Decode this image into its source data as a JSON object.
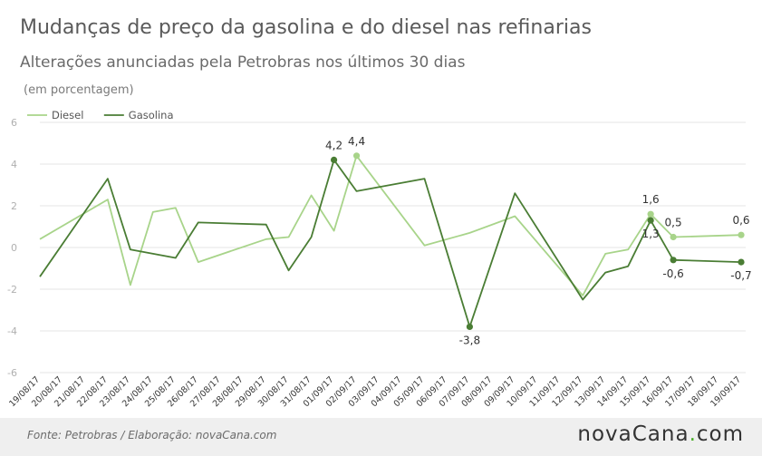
{
  "header": {
    "title": "Mudanças de preço da gasolina e do diesel nas refinarias",
    "subtitle": "Alterações anunciadas pela Petrobras nos últimos 30 dias",
    "unit": "(em porcentagem)"
  },
  "footer": {
    "source": "Fonte:  Petrobras  / Elaboração:  novaCana.com",
    "brand_name": "novaCana",
    "brand_dot": ".",
    "brand_tld": "com"
  },
  "colors": {
    "diesel": "#a8d48a",
    "gasolina": "#4a7d34",
    "grid": "#e4e4e4",
    "tick": "#b0b0b0"
  },
  "chart_data": {
    "type": "line",
    "ylim": [
      -6,
      6
    ],
    "yticks": [
      -6,
      -4,
      -2,
      0,
      2,
      4,
      6
    ],
    "legend_position": "top-left",
    "categories": [
      "19/08/17",
      "20/08/17",
      "21/08/17",
      "22/08/17",
      "23/08/17",
      "24/08/17",
      "25/08/17",
      "26/08/17",
      "27/08/17",
      "28/08/17",
      "29/08/17",
      "30/08/17",
      "31/08/17",
      "01/09/17",
      "02/09/17",
      "03/09/17",
      "04/09/17",
      "05/09/17",
      "06/09/17",
      "07/09/17",
      "08/09/17",
      "09/09/17",
      "10/09/17",
      "11/09/17",
      "12/09/17",
      "13/09/17",
      "14/09/17",
      "15/09/17",
      "16/09/17",
      "17/09/17",
      "18/09/17",
      "19/09/17"
    ],
    "series": [
      {
        "name": "Diesel",
        "points": [
          {
            "x": "19/08/17",
            "y": 0.4
          },
          {
            "x": "22/08/17",
            "y": 2.3
          },
          {
            "x": "23/08/17",
            "y": -1.8
          },
          {
            "x": "24/08/17",
            "y": 1.7
          },
          {
            "x": "25/08/17",
            "y": 1.9
          },
          {
            "x": "26/08/17",
            "y": -0.7
          },
          {
            "x": "29/08/17",
            "y": 0.4
          },
          {
            "x": "30/08/17",
            "y": 0.5
          },
          {
            "x": "31/08/17",
            "y": 2.5
          },
          {
            "x": "01/09/17",
            "y": 0.8
          },
          {
            "x": "02/09/17",
            "y": 4.4
          },
          {
            "x": "05/09/17",
            "y": 0.1
          },
          {
            "x": "07/09/17",
            "y": 0.7
          },
          {
            "x": "09/09/17",
            "y": 1.5
          },
          {
            "x": "12/09/17",
            "y": -2.3
          },
          {
            "x": "13/09/17",
            "y": -0.3
          },
          {
            "x": "14/09/17",
            "y": -0.1
          },
          {
            "x": "15/09/17",
            "y": 1.6
          },
          {
            "x": "16/09/17",
            "y": 0.5
          },
          {
            "x": "19/09/17",
            "y": 0.6
          }
        ]
      },
      {
        "name": "Gasolina",
        "points": [
          {
            "x": "19/08/17",
            "y": -1.4
          },
          {
            "x": "22/08/17",
            "y": 3.3
          },
          {
            "x": "23/08/17",
            "y": -0.1
          },
          {
            "x": "25/08/17",
            "y": -0.5
          },
          {
            "x": "26/08/17",
            "y": 1.2
          },
          {
            "x": "29/08/17",
            "y": 1.1
          },
          {
            "x": "30/08/17",
            "y": -1.1
          },
          {
            "x": "31/08/17",
            "y": 0.5
          },
          {
            "x": "01/09/17",
            "y": 4.2
          },
          {
            "x": "02/09/17",
            "y": 2.7
          },
          {
            "x": "05/09/17",
            "y": 3.3
          },
          {
            "x": "07/09/17",
            "y": -3.8
          },
          {
            "x": "09/09/17",
            "y": 2.6
          },
          {
            "x": "12/09/17",
            "y": -2.5
          },
          {
            "x": "13/09/17",
            "y": -1.2
          },
          {
            "x": "14/09/17",
            "y": -0.9
          },
          {
            "x": "15/09/17",
            "y": 1.3
          },
          {
            "x": "16/09/17",
            "y": -0.6
          },
          {
            "x": "19/09/17",
            "y": -0.7
          }
        ]
      }
    ],
    "annotations": [
      {
        "series": "Gasolina",
        "x": "01/09/17",
        "y": 4.2,
        "label": "4,2",
        "place": "above"
      },
      {
        "series": "Diesel",
        "x": "02/09/17",
        "y": 4.4,
        "label": "4,4",
        "place": "above"
      },
      {
        "series": "Gasolina",
        "x": "07/09/17",
        "y": -3.8,
        "label": "-3,8",
        "place": "below"
      },
      {
        "series": "Diesel",
        "x": "15/09/17",
        "y": 1.6,
        "label": "1,6",
        "place": "above"
      },
      {
        "series": "Gasolina",
        "x": "15/09/17",
        "y": 1.3,
        "label": "1,3",
        "place": "below"
      },
      {
        "series": "Diesel",
        "x": "16/09/17",
        "y": 0.5,
        "label": "0,5",
        "place": "above"
      },
      {
        "series": "Gasolina",
        "x": "16/09/17",
        "y": -0.6,
        "label": "-0,6",
        "place": "below"
      },
      {
        "series": "Diesel",
        "x": "19/09/17",
        "y": 0.6,
        "label": "0,6",
        "place": "above"
      },
      {
        "series": "Gasolina",
        "x": "19/09/17",
        "y": -0.7,
        "label": "-0,7",
        "place": "below"
      }
    ]
  }
}
